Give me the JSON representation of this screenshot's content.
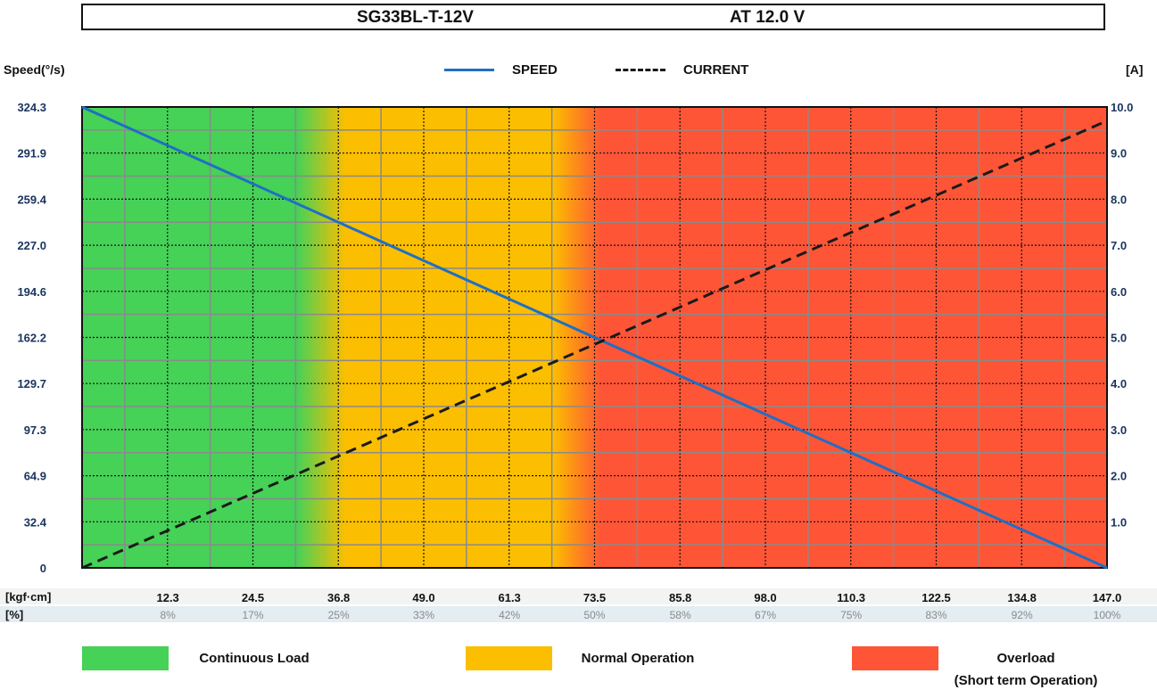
{
  "header": {
    "model": "SG33BL-T-12V",
    "voltage": "AT 12.0 V"
  },
  "axes": {
    "left_label": "Speed(°/s)",
    "right_label": "[A]",
    "torque_unit": "[kgf·cm]",
    "percent_unit": "[%]"
  },
  "legend": {
    "speed": "SPEED",
    "current": "CURRENT"
  },
  "zones": [
    {
      "label": "Continuous Load",
      "sub": "",
      "color": "#46d157"
    },
    {
      "label": "Normal Operation",
      "sub": "",
      "color": "#fcbe00"
    },
    {
      "label": "Overload",
      "sub": "(Short term Operation)",
      "color": "#fe5537"
    }
  ],
  "chart_data": {
    "type": "line",
    "title": "SG33BL-T-12V   AT 12.0 V",
    "xlabel": "[kgf·cm]",
    "ylabel": "Speed(°/s)",
    "y2label": "[A]",
    "xlim": [
      0,
      147.0
    ],
    "ylim": [
      0,
      324.3
    ],
    "y2lim": [
      0,
      10.0
    ],
    "x_ticks": [
      "12.3",
      "24.5",
      "36.8",
      "49.0",
      "61.3",
      "73.5",
      "85.8",
      "98.0",
      "110.3",
      "122.5",
      "134.8",
      "147.0"
    ],
    "x_tick_values": [
      12.3,
      24.5,
      36.8,
      49.0,
      61.3,
      73.5,
      85.8,
      98.0,
      110.3,
      122.5,
      134.8,
      147.0
    ],
    "percent_ticks": [
      "8%",
      "17%",
      "25%",
      "33%",
      "42%",
      "50%",
      "58%",
      "67%",
      "75%",
      "83%",
      "92%",
      "100%"
    ],
    "y_ticks": [
      "0",
      "32.4",
      "64.9",
      "97.3",
      "129.7",
      "162.2",
      "194.6",
      "227.0",
      "259.4",
      "291.9",
      "324.3"
    ],
    "y_tick_values": [
      0,
      32.4,
      64.9,
      97.3,
      129.7,
      162.2,
      194.6,
      227.0,
      259.4,
      291.9,
      324.3
    ],
    "y2_ticks": [
      "1.0",
      "2.0",
      "3.0",
      "4.0",
      "5.0",
      "6.0",
      "7.0",
      "8.0",
      "9.0",
      "10.0"
    ],
    "y2_tick_values": [
      1,
      2,
      3,
      4,
      5,
      6,
      7,
      8,
      9,
      10
    ],
    "series": [
      {
        "name": "SPEED",
        "axis": "left",
        "style": "solid",
        "color": "#1f6fc4",
        "x": [
          0,
          147.0
        ],
        "y": [
          324.3,
          0
        ]
      },
      {
        "name": "CURRENT",
        "axis": "right",
        "style": "dashed",
        "color": "#1a1a1a",
        "x": [
          0,
          147.0
        ],
        "y": [
          0.0,
          9.7
        ]
      }
    ],
    "regions": [
      {
        "name": "Continuous Load",
        "from": 0,
        "to": 36.8,
        "color": "#46d157"
      },
      {
        "name": "Normal Operation",
        "from": 36.8,
        "to": 73.5,
        "color": "#fcbe00"
      },
      {
        "name": "Overload",
        "from": 73.5,
        "to": 147.0,
        "color": "#fe5537"
      }
    ],
    "grid": true,
    "legend_position": "top-center"
  }
}
